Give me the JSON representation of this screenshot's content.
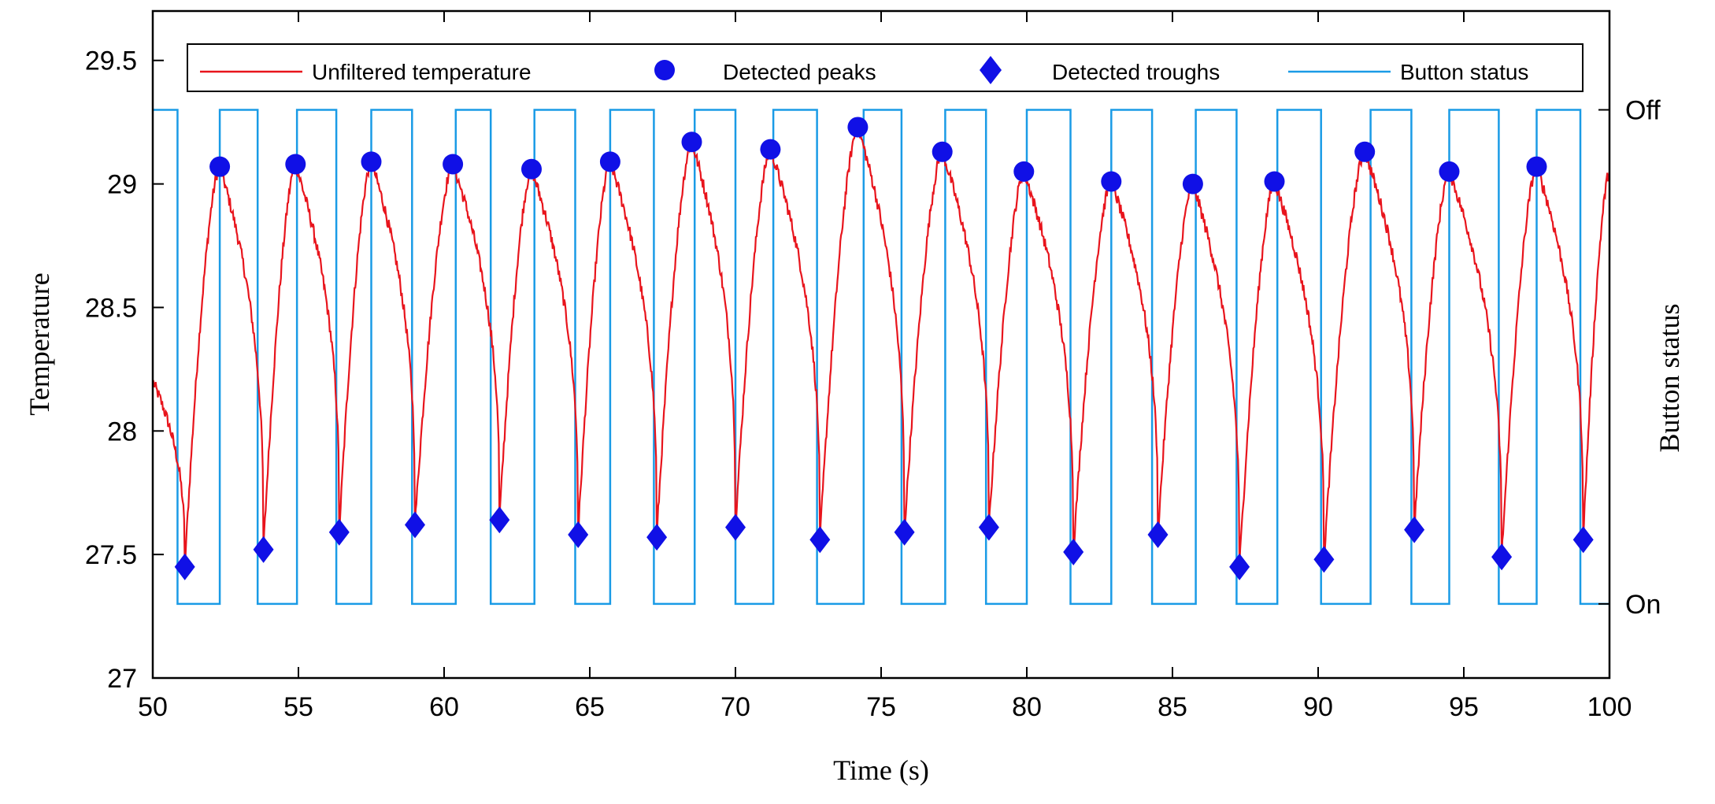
{
  "chart_data": {
    "type": "line",
    "xlabel": "Time (s)",
    "ylabel": "Temperature",
    "y2label": "Button status",
    "xlim": [
      50,
      100
    ],
    "ylim": [
      27,
      29.7
    ],
    "xticks": [
      50,
      55,
      60,
      65,
      70,
      75,
      80,
      85,
      90,
      95,
      100
    ],
    "yticks": [
      27,
      27.5,
      28,
      28.5,
      29,
      29.5
    ],
    "ytick_labels": [
      "27",
      "27.5",
      "28",
      "28.5",
      "29",
      "29.5"
    ],
    "y2_levels": [
      {
        "label": "Off",
        "value": 29.3
      },
      {
        "label": "On",
        "value": 27.3
      }
    ],
    "legend_position": "top",
    "grid": false,
    "colors": {
      "temperature": "#e8141c",
      "markers": "#1010e6",
      "button": "#1a9be6"
    },
    "legend": [
      {
        "key": "temperature",
        "label": "Unfiltered temperature",
        "symbol": "line",
        "color": "#e8141c"
      },
      {
        "key": "peaks",
        "label": "Detected peaks",
        "symbol": "circle",
        "color": "#1010e6"
      },
      {
        "key": "troughs",
        "label": "Detected troughs",
        "symbol": "diamond",
        "color": "#1010e6"
      },
      {
        "key": "button",
        "label": "Button status",
        "symbol": "line",
        "color": "#1a9be6"
      }
    ],
    "series": [
      {
        "name": "Detected peaks",
        "marker": "circle",
        "points": [
          [
            52.3,
            29.07
          ],
          [
            54.9,
            29.08
          ],
          [
            57.5,
            29.09
          ],
          [
            60.3,
            29.08
          ],
          [
            63.0,
            29.06
          ],
          [
            65.7,
            29.09
          ],
          [
            68.5,
            29.17
          ],
          [
            71.2,
            29.14
          ],
          [
            74.2,
            29.23
          ],
          [
            77.1,
            29.13
          ],
          [
            79.9,
            29.05
          ],
          [
            82.9,
            29.01
          ],
          [
            85.7,
            29.0
          ],
          [
            88.5,
            29.01
          ],
          [
            91.6,
            29.13
          ],
          [
            94.5,
            29.05
          ],
          [
            97.5,
            29.07
          ]
        ]
      },
      {
        "name": "Detected troughs",
        "marker": "diamond",
        "points": [
          [
            51.1,
            27.45
          ],
          [
            53.8,
            27.52
          ],
          [
            56.4,
            27.59
          ],
          [
            59.0,
            27.62
          ],
          [
            61.9,
            27.64
          ],
          [
            64.6,
            27.58
          ],
          [
            67.3,
            27.57
          ],
          [
            70.0,
            27.61
          ],
          [
            72.9,
            27.56
          ],
          [
            75.8,
            27.59
          ],
          [
            78.7,
            27.61
          ],
          [
            81.6,
            27.51
          ],
          [
            84.5,
            27.58
          ],
          [
            87.3,
            27.45
          ],
          [
            90.2,
            27.48
          ],
          [
            93.3,
            27.6
          ],
          [
            96.3,
            27.49
          ],
          [
            99.1,
            27.56
          ]
        ]
      },
      {
        "name": "Button status",
        "kind": "step",
        "on_value": 27.3,
        "off_value": 29.3,
        "start_state": "off",
        "transitions": [
          50.85,
          52.3,
          53.6,
          54.95,
          56.3,
          57.5,
          58.9,
          60.4,
          61.6,
          63.1,
          64.5,
          65.7,
          67.2,
          68.6,
          70.0,
          71.3,
          72.8,
          74.4,
          75.7,
          77.2,
          78.6,
          80.0,
          81.5,
          82.9,
          84.3,
          85.8,
          87.2,
          88.6,
          90.1,
          91.8,
          93.2,
          94.5,
          96.2,
          97.5,
          99.0
        ]
      },
      {
        "name": "Unfiltered temperature",
        "kind": "sawtooth",
        "start_point": [
          50,
          28.2
        ],
        "end_point": [
          100,
          29.05
        ],
        "cycles_from_troughs_to_peaks": true
      }
    ]
  }
}
